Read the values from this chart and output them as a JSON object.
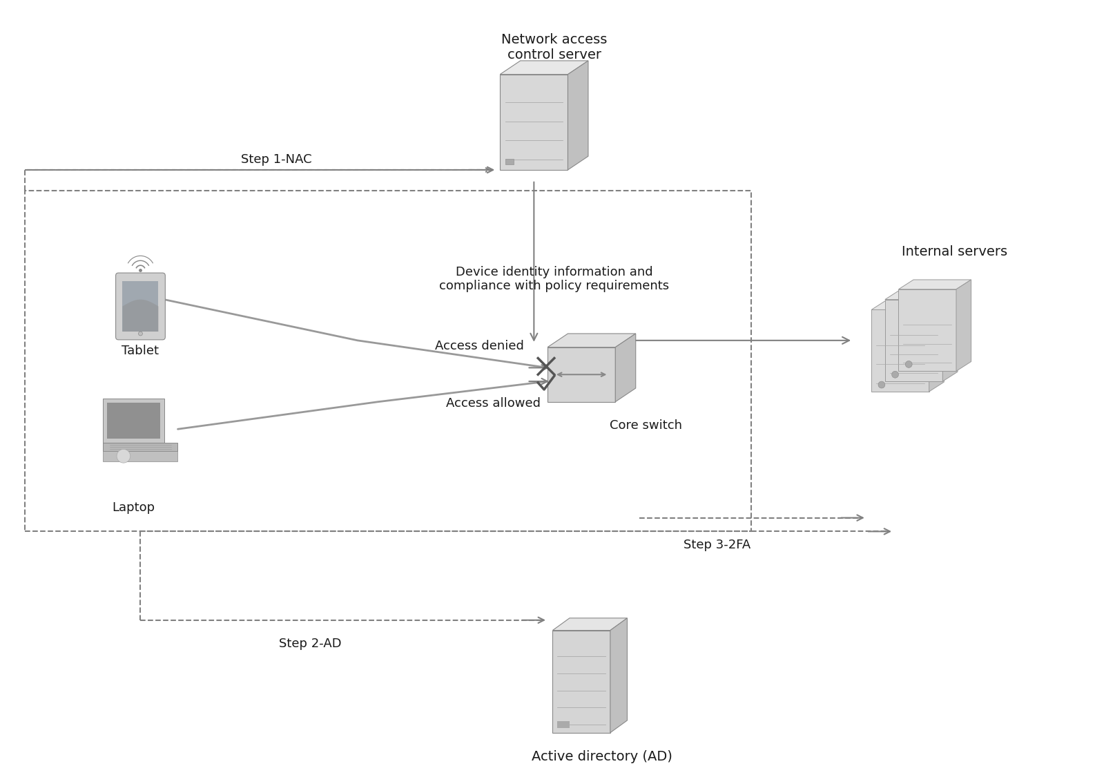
{
  "background_color": "#ffffff",
  "figsize": [
    15.86,
    11.22
  ],
  "dpi": 100,
  "title_nac": "Network access\ncontrol server",
  "title_internal": "Internal servers",
  "title_ad": "Active directory (AD)",
  "title_core": "Core switch",
  "title_tablet": "Tablet",
  "title_laptop": "Laptop",
  "label_step1": "Step 1-NAC",
  "label_step2": "Step 2-AD",
  "label_step3": "Step 3-2FA",
  "label_device_info": "Device identity information and\ncompliance with policy requirements",
  "label_access_denied": "Access denied",
  "label_access_allowed": "Access allowed",
  "text_color": "#1a1a1a",
  "arrow_color": "#808080",
  "dashed_color": "#808080",
  "line_color": "#999999"
}
